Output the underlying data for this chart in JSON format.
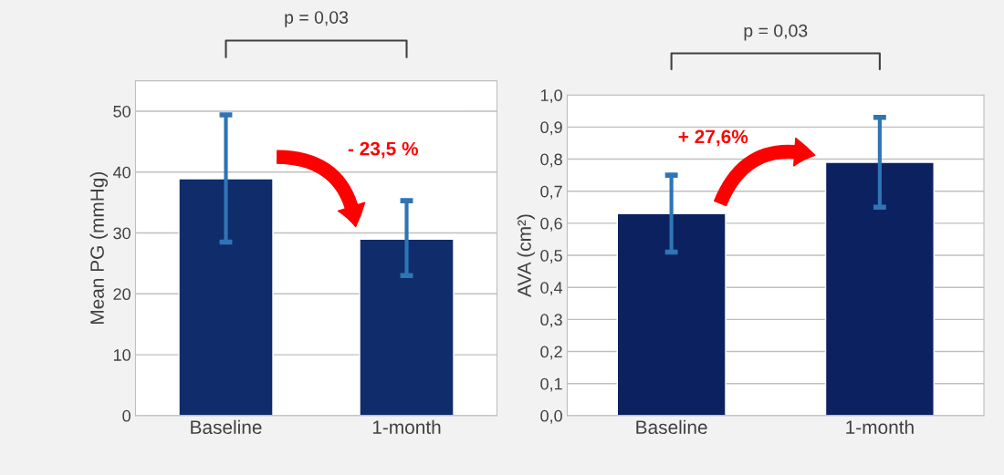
{
  "chart_data": [
    {
      "type": "bar",
      "categories": [
        "Baseline",
        "1-month"
      ],
      "ylabel": "Mean PG (mmHg)",
      "values": [
        38.9,
        29.0
      ],
      "errors": [
        [
          28.5,
          49.4
        ],
        [
          23.0,
          35.3
        ]
      ],
      "color": "#102c6a",
      "ylim": [
        0,
        55
      ],
      "yticks": [
        0,
        10,
        20,
        30,
        40,
        50
      ],
      "grid": "y",
      "annotations": [
        "p = 0,03",
        "- 23,5 %"
      ]
    },
    {
      "type": "bar",
      "categories": [
        "Baseline",
        "1-month"
      ],
      "ylabel": "AVA (cm²)",
      "values": [
        0.63,
        0.79
      ],
      "errors": [
        [
          0.51,
          0.75
        ],
        [
          0.65,
          0.93
        ]
      ],
      "color": "#0b2160",
      "ylim": [
        0,
        1.0
      ],
      "yticks": [
        {
          "value": 0.0,
          "label": "0,0"
        },
        {
          "value": 0.1,
          "label": "0,1"
        },
        {
          "value": 0.2,
          "label": "0,2"
        },
        {
          "value": 0.3,
          "label": "0,3"
        },
        {
          "value": 0.4,
          "label": "0,4"
        },
        {
          "value": 0.5,
          "label": "0,5"
        },
        {
          "value": 0.6,
          "label": "0,6"
        },
        {
          "value": 0.7,
          "label": "0,7"
        },
        {
          "value": 0.8,
          "label": "0,8"
        },
        {
          "value": 0.9,
          "label": "0,9"
        },
        {
          "value": 1.0,
          "label": "1,0"
        }
      ],
      "grid": "y",
      "annotations": [
        "p = 0,03",
        "+ 27,6%"
      ]
    }
  ]
}
